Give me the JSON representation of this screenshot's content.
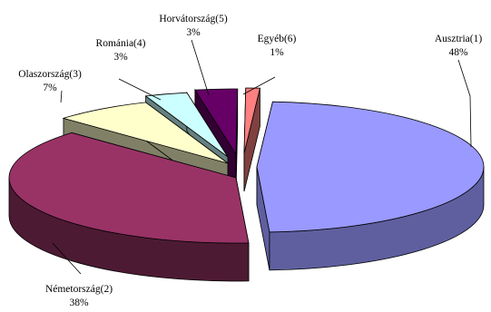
{
  "chart_data": {
    "type": "pie",
    "style": "3d-exploded",
    "title": "",
    "legend": "none",
    "slices": [
      {
        "label": "Ausztria(1)",
        "percent_label": "48%",
        "value": 48,
        "color": "#9999ff",
        "side_color": "#5f5fa0"
      },
      {
        "label": "Németország(2)",
        "percent_label": "38%",
        "value": 38,
        "color": "#993366",
        "side_color": "#4d1a33"
      },
      {
        "label": "Olaszország(3)",
        "percent_label": "7%",
        "value": 7,
        "color": "#ffffcc",
        "side_color": "#808066"
      },
      {
        "label": "Románia(4)",
        "percent_label": "3%",
        "value": 3,
        "color": "#ccffff",
        "side_color": "#668080"
      },
      {
        "label": "Horvátország(5)",
        "percent_label": "3%",
        "value": 3,
        "color": "#660066",
        "side_color": "#330033"
      },
      {
        "label": "Egyéb(6)",
        "percent_label": "1%",
        "value": 1,
        "color": "#ff8080",
        "side_color": "#804040"
      }
    ]
  }
}
